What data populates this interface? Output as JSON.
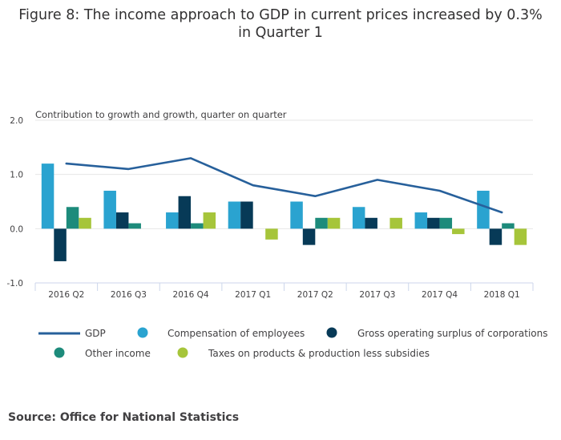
{
  "title": {
    "line1": "Figure 8: The income approach to GDP in current prices increased by 0.3%",
    "line2": "in Quarter 1"
  },
  "source": "Source: Office for National Statistics",
  "colors": {
    "gdp": "#27609b",
    "compensation": "#2aa3d0",
    "gross_operating_surplus": "#073a57",
    "other_income": "#1d8b7b",
    "taxes": "#a6c53a",
    "grid": "#e6e6e6",
    "axis": "#ccd6eb",
    "text": "#414042"
  },
  "chart_data": {
    "type": "bar",
    "title": "Figure 8: The income approach to GDP in current prices increased by 0.3% in Quarter 1",
    "ylabel": "Contribution to growth and growth, quarter on quarter",
    "ylim": [
      -1.0,
      2.0
    ],
    "yticks": [
      "2.0",
      "1.0",
      "0.0",
      "-1.0"
    ],
    "ytick_values": [
      2.0,
      1.0,
      0.0,
      -1.0
    ],
    "grid": true,
    "legend_position": "bottom",
    "categories": [
      "2016 Q2",
      "2016 Q3",
      "2016 Q4",
      "2017 Q1",
      "2017 Q2",
      "2017 Q3",
      "2017 Q4",
      "2018 Q1"
    ],
    "line_series": {
      "name": "GDP",
      "color": "#27609b",
      "values": [
        1.2,
        1.1,
        1.3,
        0.8,
        0.6,
        0.9,
        0.7,
        0.3
      ]
    },
    "series": [
      {
        "name": "Compensation of employees",
        "color": "#2aa3d0",
        "values": [
          1.2,
          0.7,
          0.3,
          0.5,
          0.5,
          0.4,
          0.3,
          0.7
        ]
      },
      {
        "name": "Gross operating surplus of corporations",
        "color": "#073a57",
        "values": [
          -0.6,
          0.3,
          0.6,
          0.5,
          -0.3,
          0.2,
          0.2,
          -0.3
        ]
      },
      {
        "name": "Other income",
        "color": "#1d8b7b",
        "values": [
          0.4,
          0.1,
          0.1,
          0.0,
          0.2,
          0.0,
          0.2,
          0.1
        ]
      },
      {
        "name": "Taxes on products & production less subsidies",
        "color": "#a6c53a",
        "values": [
          0.2,
          0.0,
          0.3,
          -0.2,
          0.2,
          0.2,
          -0.1,
          -0.3
        ]
      }
    ]
  }
}
